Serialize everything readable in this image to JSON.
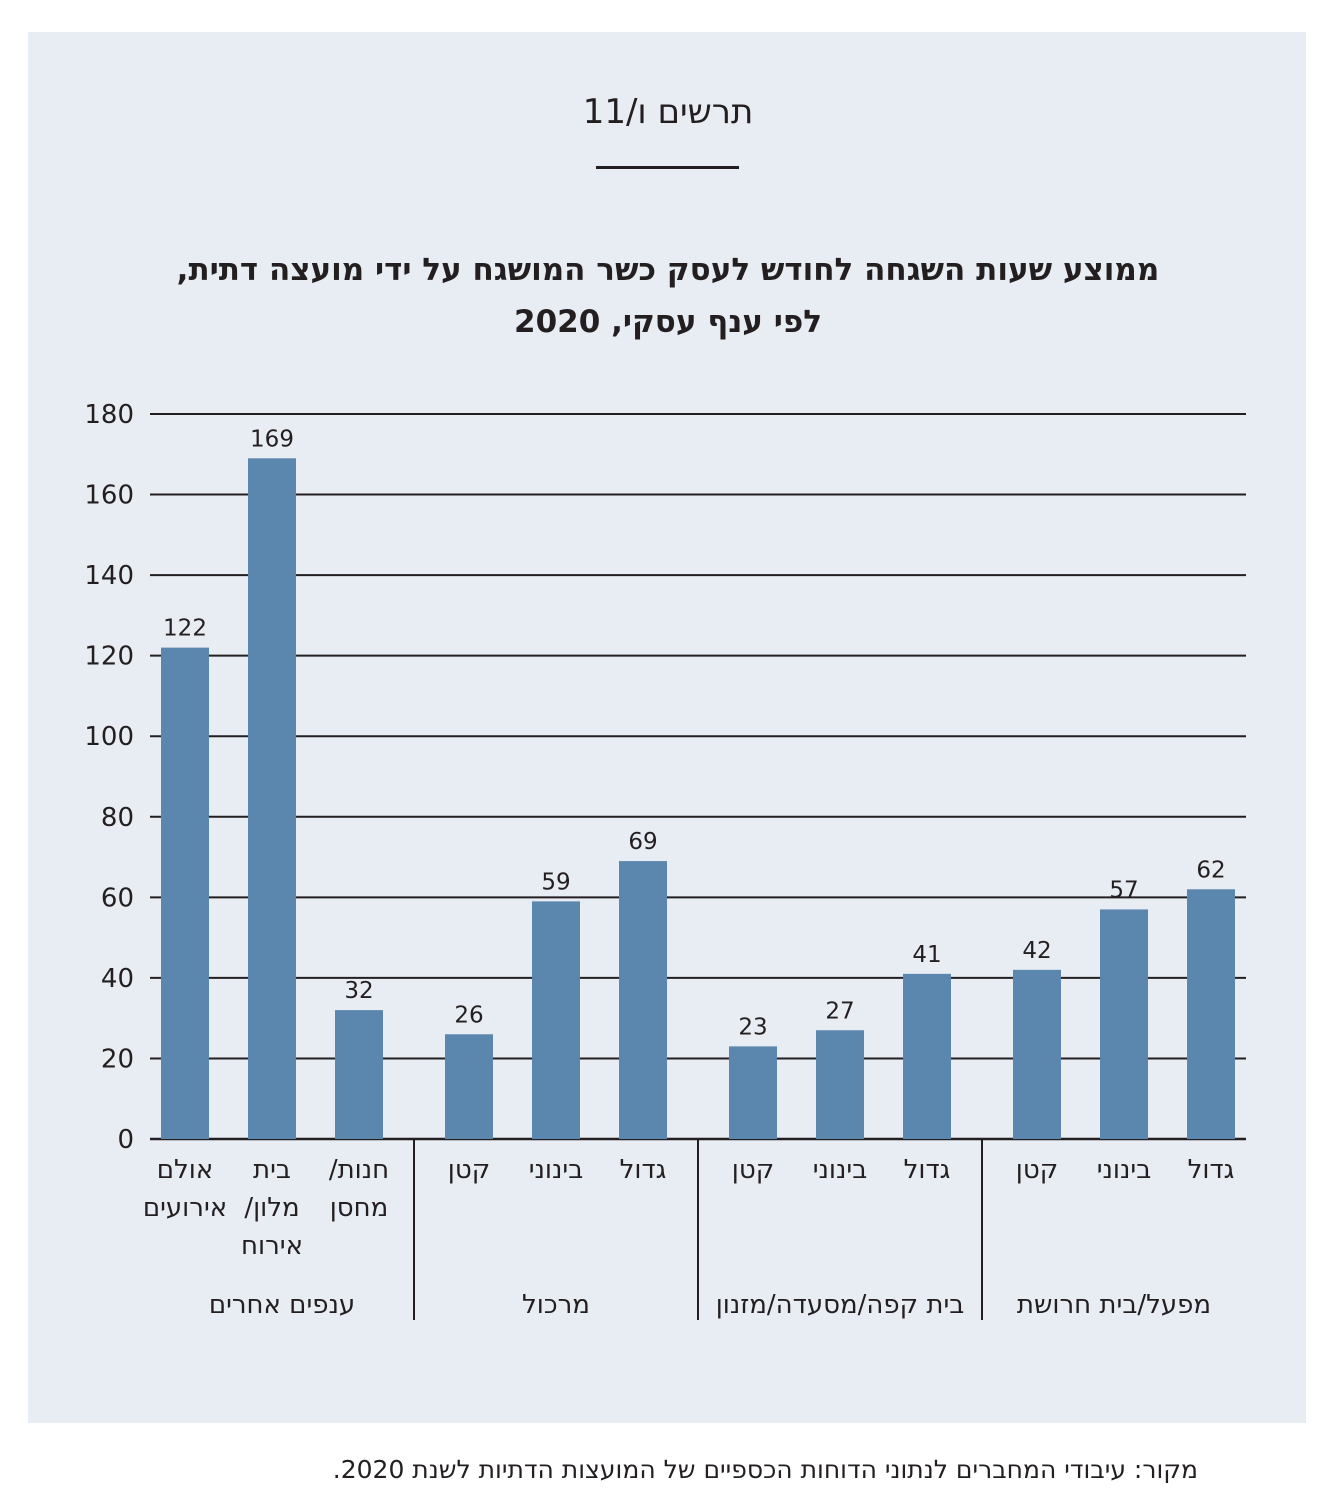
{
  "figure_label": "תרשים ו/11",
  "title": "ממוצע שעות השגחה לחודש לעסק כשר המושגח על ידי מועצה דתית, לפי ענף עסקי, 2020",
  "title_lines": [
    "ממוצע שעות השגחה לחודש לעסק כשר המושגח על ידי מועצה דתית,",
    "לפי ענף עסקי, 2020"
  ],
  "source": "מקור: עיבודי המחברים לנתוני הדוחות הכספיים של המועצות הדתיות לשנת 2020.",
  "colors": {
    "bar": "#5b86ae",
    "panel": "#e8edf4",
    "text": "#231f20"
  },
  "chart_data": {
    "type": "bar",
    "title": "ממוצע שעות השגחה לחודש לעסק כשר המושגח על ידי מועצה דתית, לפי ענף עסקי, 2020",
    "xlabel": "",
    "ylabel": "",
    "ylim": [
      0,
      180
    ],
    "yticks": [
      0,
      20,
      40,
      60,
      80,
      100,
      120,
      140,
      160,
      180
    ],
    "grid": true,
    "direction": "rtl",
    "groups": [
      {
        "name": "מפעל/בית חרושת",
        "categories": [
          {
            "label": [
              "גדול"
            ],
            "value": 62
          },
          {
            "label": [
              "בינוני"
            ],
            "value": 57
          },
          {
            "label": [
              "קטן"
            ],
            "value": 42
          }
        ]
      },
      {
        "name": "בית קפה/מסעדה/מזנון",
        "categories": [
          {
            "label": [
              "גדול"
            ],
            "value": 41
          },
          {
            "label": [
              "בינוני"
            ],
            "value": 27
          },
          {
            "label": [
              "קטן"
            ],
            "value": 23
          }
        ]
      },
      {
        "name": "מרכול",
        "categories": [
          {
            "label": [
              "גדול"
            ],
            "value": 69
          },
          {
            "label": [
              "בינוני"
            ],
            "value": 59
          },
          {
            "label": [
              "קטן"
            ],
            "value": 26
          }
        ]
      },
      {
        "name": "ענפים אחרים",
        "categories": [
          {
            "label": [
              "חנות/",
              "מחסן"
            ],
            "value": 32
          },
          {
            "label": [
              "בית",
              "מלון/",
              "אירוח"
            ],
            "value": 169
          },
          {
            "label": [
              "אולם",
              "אירועים"
            ],
            "value": 122
          }
        ]
      }
    ]
  }
}
